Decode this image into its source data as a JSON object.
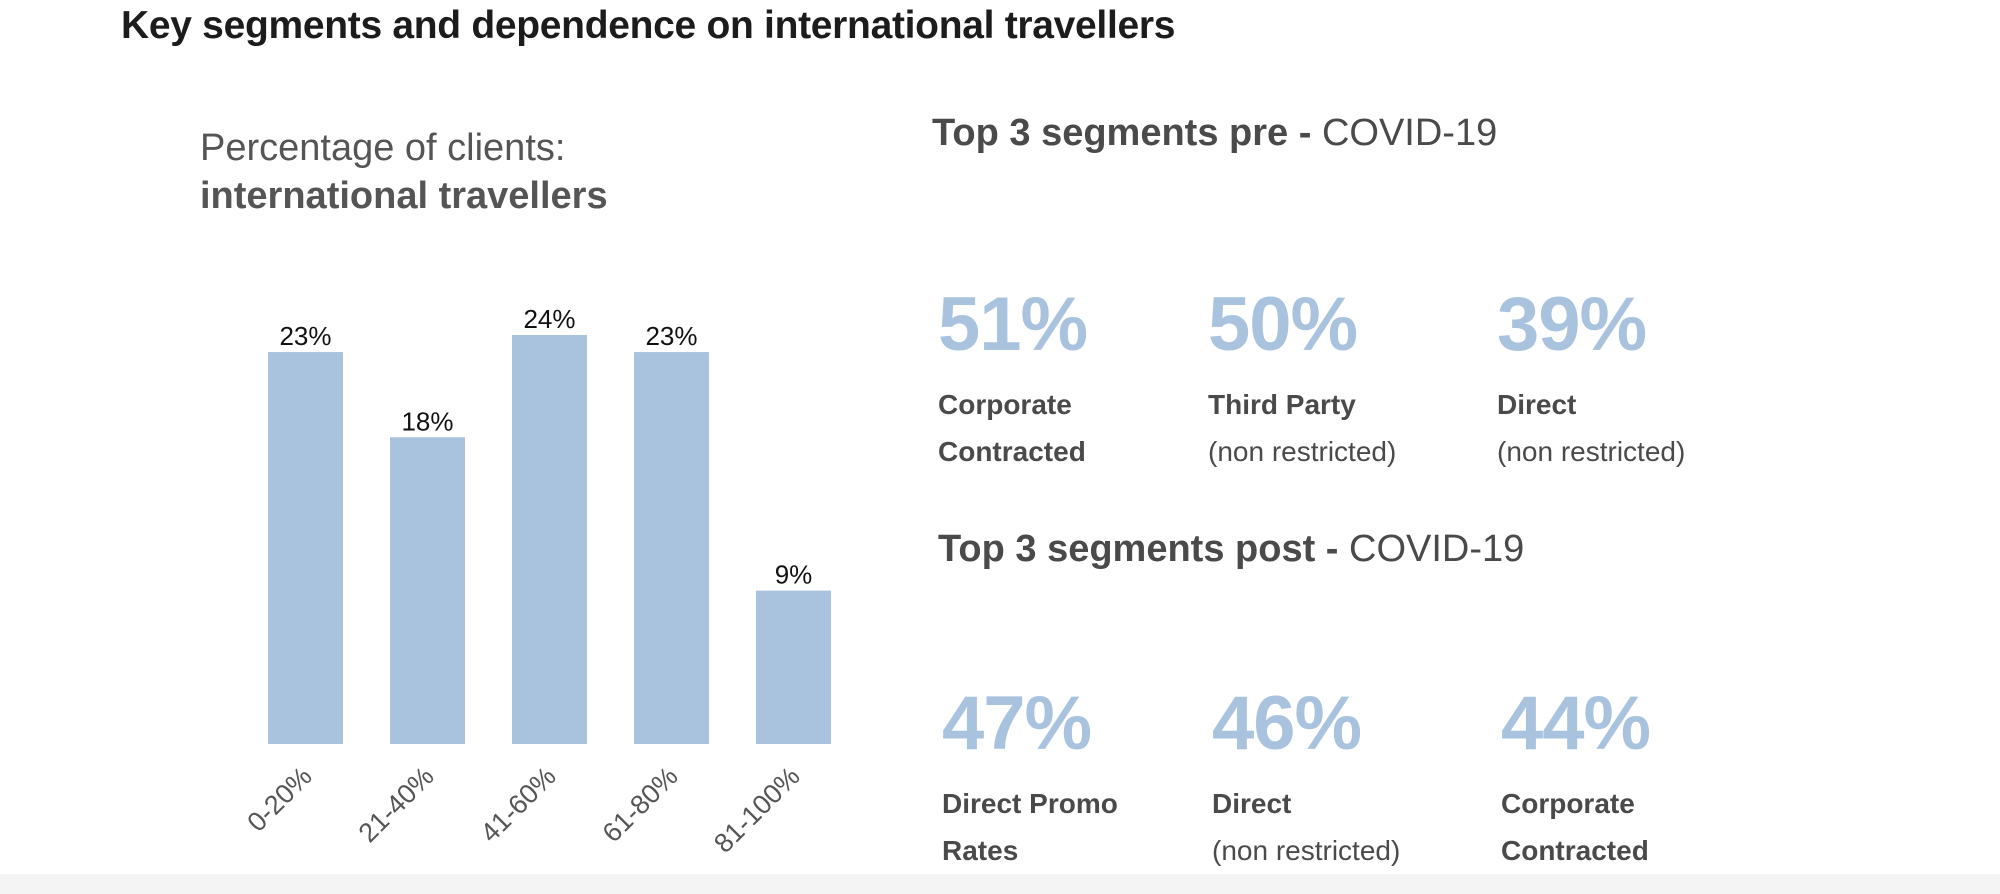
{
  "page": {
    "title": "Key segments and dependence on international travellers"
  },
  "chart_data": {
    "type": "bar",
    "title_line1": "Percentage of clients:",
    "title_line2": "international travellers",
    "categories": [
      "0-20%",
      "21-40%",
      "41-60%",
      "61-80%",
      "81-100%"
    ],
    "values": [
      23,
      18,
      24,
      23,
      9
    ],
    "value_labels": [
      "23%",
      "18%",
      "24%",
      "23%",
      "9%"
    ],
    "ylim": [
      0,
      24
    ],
    "grid": false,
    "bar_color": "#a9c3df"
  },
  "segments": {
    "pre": {
      "heading_bold": "Top 3 segments pre -",
      "heading_rest": "COVID-19",
      "items": [
        {
          "value": "51%",
          "line1": "Corporate",
          "line2": "Contracted",
          "line2_bold": true
        },
        {
          "value": "50%",
          "line1": "Third Party",
          "line2": "(non restricted)",
          "line2_bold": false
        },
        {
          "value": "39%",
          "line1": "Direct",
          "line2": "(non restricted)",
          "line2_bold": false
        }
      ]
    },
    "post": {
      "heading_bold": "Top 3 segments post -",
      "heading_rest": "COVID-19",
      "items": [
        {
          "value": "47%",
          "line1": "Direct Promo",
          "line2": "Rates",
          "line2_bold": true
        },
        {
          "value": "46%",
          "line1": "Direct",
          "line2": "(non restricted)",
          "line2_bold": false
        },
        {
          "value": "44%",
          "line1": "Corporate",
          "line2": "Contracted",
          "line2_bold": true
        }
      ]
    },
    "value_color": "#a9c3df"
  }
}
